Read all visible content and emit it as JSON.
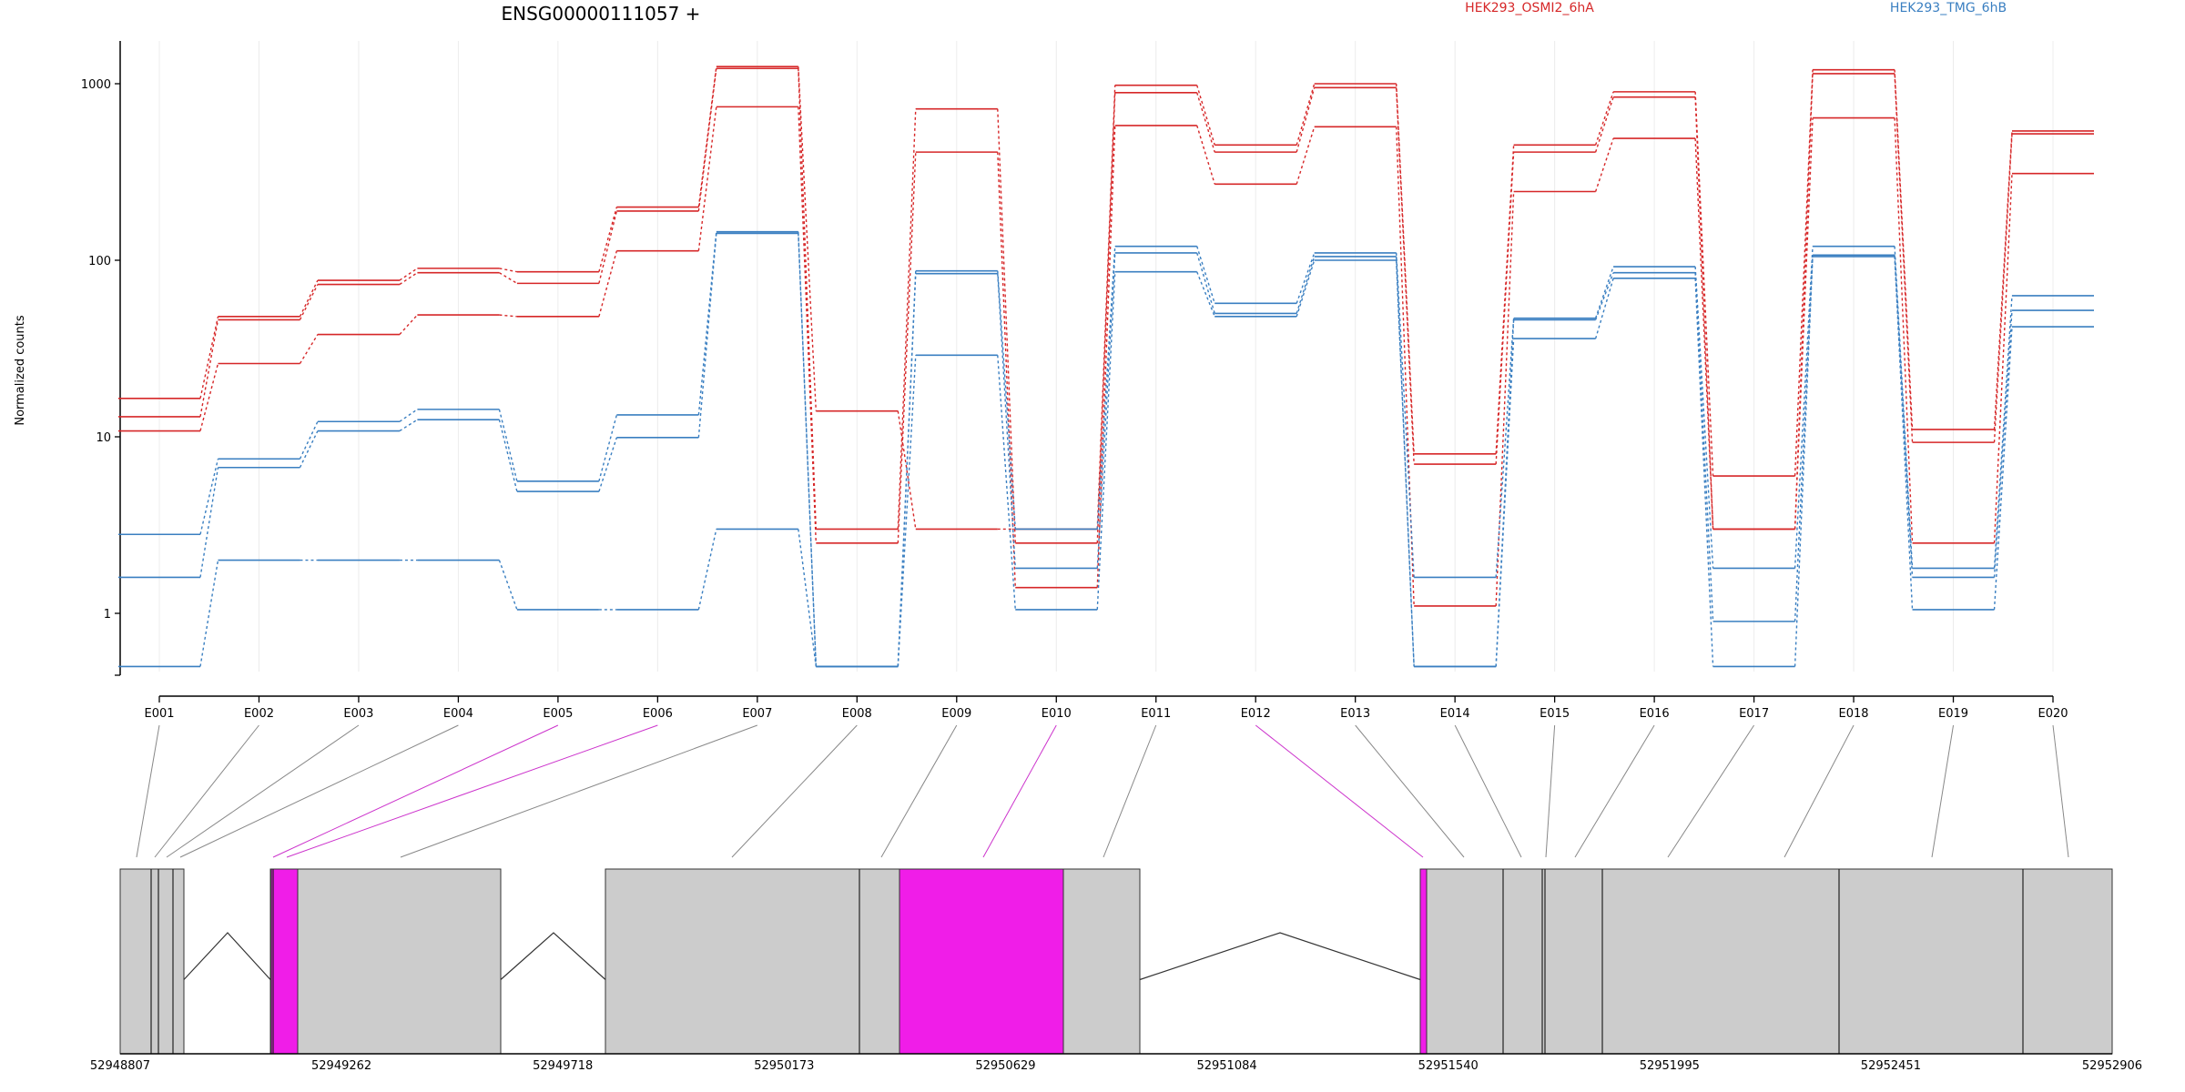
{
  "chart_data": {
    "type": "line",
    "title": "ENSG00000111057 +",
    "xlabel": "",
    "ylabel": "Normalized counts",
    "y_scale": "log",
    "yticks": [
      1,
      10,
      100,
      1000
    ],
    "categories": [
      "E001",
      "E002",
      "E003",
      "E004",
      "E005",
      "E006",
      "E007",
      "E008",
      "E009",
      "E010",
      "E011",
      "E012",
      "E013",
      "E014",
      "E015",
      "E016",
      "E017",
      "E018",
      "E019",
      "E020"
    ],
    "series": [
      {
        "name": "HEK293_OSMI2_6hA",
        "group": "HEK293_OSMI2_6hA",
        "color": "#d62728",
        "values": [
          16.5,
          48,
          77,
          90,
          86,
          200,
          1250,
          14,
          3.0,
          3.0,
          980,
          450,
          1000,
          8.0,
          450,
          900,
          6.0,
          1200,
          11.0,
          540
        ]
      },
      {
        "group": "HEK293_OSMI2_6hA",
        "color": "#d62728",
        "values": [
          13,
          46,
          73,
          85,
          74,
          190,
          1220,
          3.0,
          720,
          2.5,
          890,
          410,
          950,
          7.0,
          410,
          840,
          3.0,
          1140,
          9.3,
          520
        ]
      },
      {
        "group": "HEK293_OSMI2_6hA",
        "color": "#d62728",
        "values": [
          10.8,
          26,
          38,
          49,
          48,
          113,
          740,
          2.5,
          410,
          1.4,
          580,
          270,
          570,
          1.1,
          245,
          490,
          3.0,
          640,
          2.5,
          310
        ]
      },
      {
        "name": "HEK293_TMG_6hB",
        "group": "HEK293_TMG_6hB",
        "color": "#3a7fc1",
        "values": [
          2.8,
          7.5,
          12.2,
          14.3,
          5.6,
          13.3,
          145,
          0.5,
          87,
          3.0,
          120,
          57,
          110,
          1.6,
          47,
          92,
          1.8,
          120,
          1.8,
          63
        ]
      },
      {
        "group": "HEK293_TMG_6hB",
        "color": "#3a7fc1",
        "values": [
          1.6,
          6.7,
          10.8,
          12.5,
          4.9,
          9.9,
          142,
          0.5,
          84,
          1.8,
          110,
          50,
          105,
          0.5,
          46,
          85,
          0.9,
          107,
          1.6,
          52
        ]
      },
      {
        "group": "HEK293_TMG_6hB",
        "color": "#3a7fc1",
        "values": [
          0.5,
          2.0,
          2.0,
          2.0,
          1.05,
          1.05,
          3.0,
          0.5,
          29,
          1.05,
          86,
          48,
          100,
          0.5,
          36,
          79,
          0.5,
          105,
          1.05,
          42
        ]
      }
    ],
    "gene_model": {
      "coordinate_ticks": [
        "52948807",
        "52949262",
        "52949718",
        "52950173",
        "52950629",
        "52951084",
        "52951540",
        "52951995",
        "52952451",
        "52952906"
      ],
      "exon_connector_colors": [
        "#888888",
        "#888888",
        "#888888",
        "#888888",
        "#cc33cc",
        "#cc33cc",
        "#888888",
        "#888888",
        "#888888",
        "#cc33cc",
        "#888888",
        "#cc33cc",
        "#888888",
        "#888888",
        "#888888",
        "#888888",
        "#888888",
        "#888888",
        "#888888",
        "#888888"
      ],
      "highlight_color": "#f01de8",
      "exon_fill": "#cccccc"
    }
  },
  "legend": [
    {
      "label": "HEK293_OSMI2_6hA",
      "color": "#d62728"
    },
    {
      "label": "HEK293_TMG_6hB",
      "color": "#3a7fc1"
    }
  ]
}
